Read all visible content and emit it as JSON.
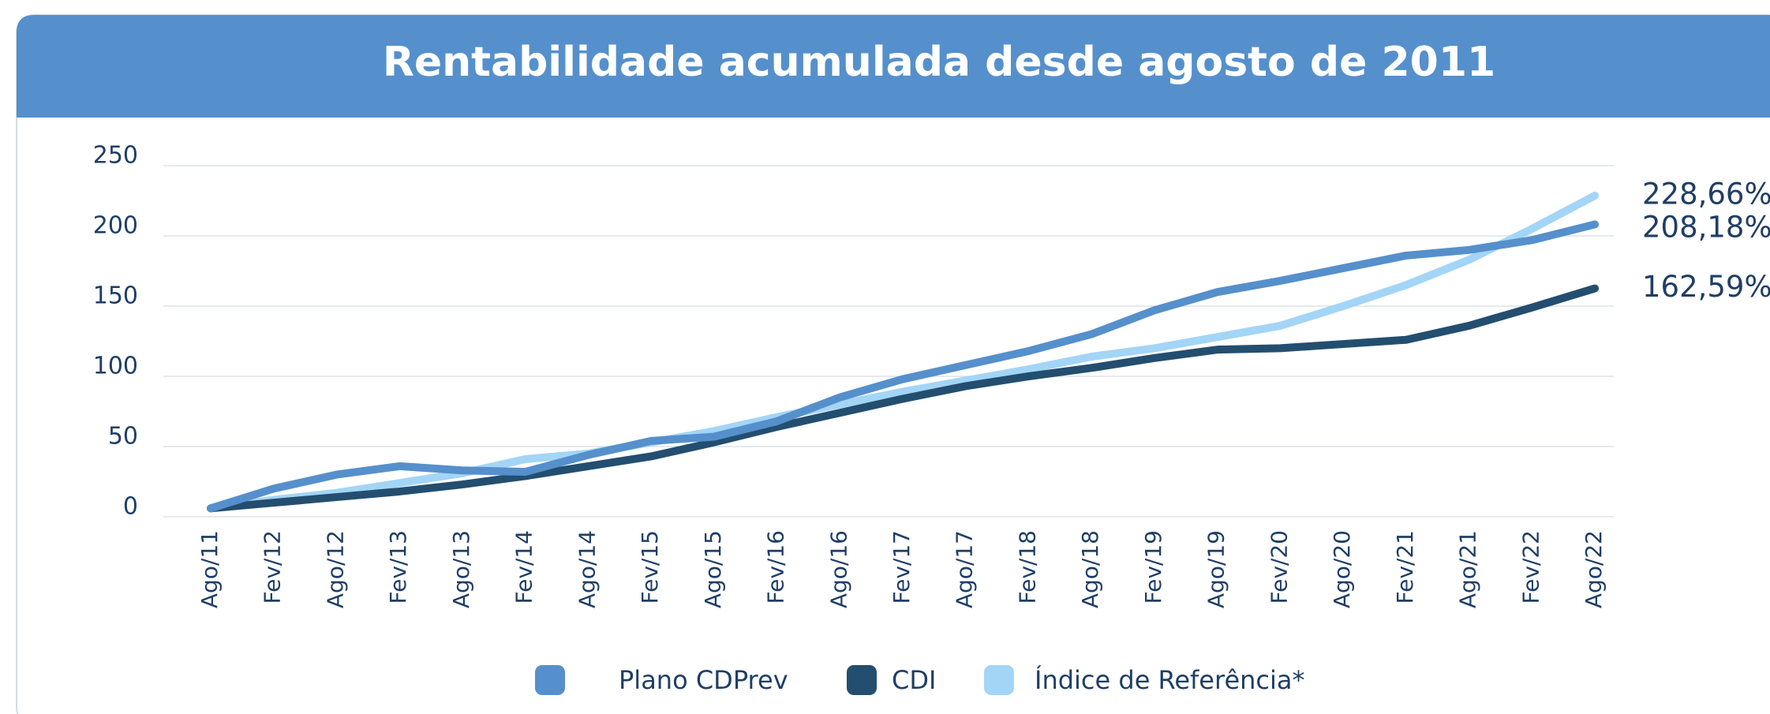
{
  "chart_data": {
    "type": "line",
    "title": "Rentabilidade acumulada desde agosto de 2011",
    "categories": [
      "Ago/11",
      "Fev/12",
      "Ago/12",
      "Fev/13",
      "Ago/13",
      "Fev/14",
      "Ago/14",
      "Fev/15",
      "Ago/15",
      "Fev/16",
      "Ago/16",
      "Fev/17",
      "Ago/17",
      "Fev/18",
      "Ago/18",
      "Fev/19",
      "Ago/19",
      "Fev/20",
      "Ago/20",
      "Fev/21",
      "Ago/21",
      "Fev/22",
      "Ago/22"
    ],
    "series": [
      {
        "name": "Plano CDPrev",
        "color": "#5590cc",
        "values": [
          6,
          20,
          30,
          36,
          33,
          32,
          44,
          54,
          57,
          68,
          85,
          98,
          108,
          118,
          130,
          147,
          160,
          168,
          177,
          186,
          190,
          197,
          208.18
        ],
        "value_labels": [
          null,
          null,
          null,
          null,
          null,
          null,
          null,
          null,
          null,
          null,
          null,
          null,
          null,
          null,
          null,
          null,
          null,
          null,
          null,
          null,
          null,
          null,
          "208,18%"
        ]
      },
      {
        "name": "CDI",
        "color": "#234e70",
        "values": [
          6,
          10,
          14,
          18,
          23,
          29,
          36,
          43,
          53,
          64,
          74,
          84,
          93,
          100,
          106,
          113,
          119,
          120,
          123,
          126,
          136,
          149,
          162.59
        ],
        "value_labels": [
          null,
          null,
          null,
          null,
          null,
          null,
          null,
          null,
          null,
          null,
          null,
          null,
          null,
          null,
          null,
          null,
          null,
          null,
          null,
          null,
          null,
          null,
          "162,59%"
        ]
      },
      {
        "name": "Índice de Referência*",
        "color": "#a3d5f7",
        "values": [
          6,
          12,
          17,
          24,
          31,
          41,
          45,
          53,
          61,
          71,
          80,
          89,
          97,
          105,
          114,
          120,
          128,
          136,
          150,
          165,
          183,
          205,
          228.66
        ],
        "value_labels": [
          null,
          null,
          null,
          null,
          null,
          null,
          null,
          null,
          null,
          null,
          null,
          null,
          null,
          null,
          null,
          null,
          null,
          null,
          null,
          null,
          null,
          null,
          "228,66%"
        ]
      }
    ],
    "ylim": [
      0,
      250
    ],
    "yticks": [
      0,
      50,
      100,
      150,
      200,
      250
    ],
    "grid": true,
    "legend": "bottom"
  }
}
